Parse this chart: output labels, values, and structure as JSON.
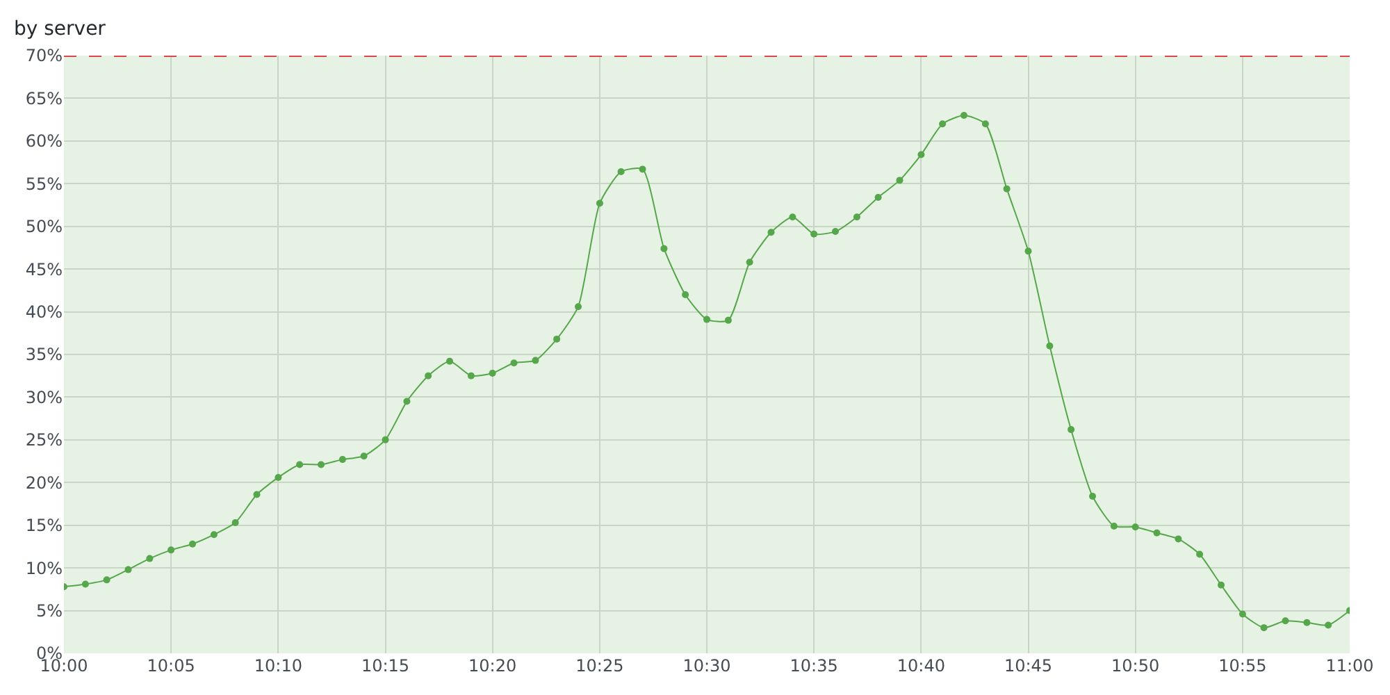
{
  "chart_data": {
    "type": "line",
    "title": "by server",
    "x": [
      10.0,
      10.0167,
      10.0333,
      10.05,
      10.0667,
      10.0833,
      10.1,
      10.1167,
      10.1333,
      10.15,
      10.1667,
      10.1833,
      10.2,
      10.2167,
      10.2333,
      10.25,
      10.2667,
      10.2833,
      10.3,
      10.3167,
      10.3333,
      10.35,
      10.3667,
      10.3833,
      10.4,
      10.4167,
      10.4333,
      10.45,
      10.4667,
      10.4833,
      10.5,
      10.5167,
      10.5333,
      10.55,
      10.5667,
      10.5833,
      10.6,
      10.6167,
      10.6333,
      10.65,
      10.6667,
      10.6833,
      10.7,
      10.7167,
      10.7333,
      10.75,
      10.7667,
      10.7833,
      10.8,
      10.8167,
      10.8333,
      10.85,
      10.8667,
      10.8833,
      10.9,
      10.9167,
      10.9333,
      10.95,
      10.9667,
      10.9833,
      11.0
    ],
    "series": [
      {
        "color": "#56a64b",
        "values": [
          7.8,
          8.1,
          8.6,
          9.8,
          11.1,
          12.1,
          12.8,
          13.9,
          15.3,
          18.6,
          20.6,
          22.1,
          22.1,
          22.7,
          23.1,
          25.0,
          29.5,
          32.5,
          34.2,
          32.5,
          32.8,
          34.0,
          34.3,
          36.8,
          40.6,
          52.7,
          56.4,
          56.7,
          47.4,
          42.0,
          39.1,
          39.0,
          45.8,
          49.3,
          51.1,
          49.1,
          49.4,
          51.1,
          53.4,
          55.4,
          58.4,
          62.0,
          63.0,
          62.0,
          54.4,
          47.1,
          36.0,
          26.2,
          18.4,
          14.9,
          14.8,
          14.1,
          13.4,
          11.6,
          8.0,
          4.6,
          3.0,
          3.8,
          3.6,
          3.3,
          5.0
        ]
      }
    ],
    "xlim": [
      10.0,
      11.0
    ],
    "xticks": [
      {
        "value": 10.0,
        "label": "10:00"
      },
      {
        "value": 10.0833,
        "label": "10:05"
      },
      {
        "value": 10.1667,
        "label": "10:10"
      },
      {
        "value": 10.25,
        "label": "10:15"
      },
      {
        "value": 10.3333,
        "label": "10:20"
      },
      {
        "value": 10.4167,
        "label": "10:25"
      },
      {
        "value": 10.5,
        "label": "10:30"
      },
      {
        "value": 10.5833,
        "label": "10:35"
      },
      {
        "value": 10.6667,
        "label": "10:40"
      },
      {
        "value": 10.75,
        "label": "10:45"
      },
      {
        "value": 10.8333,
        "label": "10:50"
      },
      {
        "value": 10.9167,
        "label": "10:55"
      },
      {
        "value": 11.0,
        "label": "11:00"
      }
    ],
    "ylim": [
      0,
      70
    ],
    "yticks": [
      {
        "value": 0,
        "label": "0%"
      },
      {
        "value": 5,
        "label": "5%"
      },
      {
        "value": 10,
        "label": "10%"
      },
      {
        "value": 15,
        "label": "15%"
      },
      {
        "value": 20,
        "label": "20%"
      },
      {
        "value": 25,
        "label": "25%"
      },
      {
        "value": 30,
        "label": "30%"
      },
      {
        "value": 35,
        "label": "35%"
      },
      {
        "value": 40,
        "label": "40%"
      },
      {
        "value": 45,
        "label": "45%"
      },
      {
        "value": 50,
        "label": "50%"
      },
      {
        "value": 55,
        "label": "55%"
      },
      {
        "value": 60,
        "label": "60%"
      },
      {
        "value": 65,
        "label": "65%"
      },
      {
        "value": 70,
        "label": "70%"
      }
    ],
    "ref_lines": [
      {
        "axis": "y",
        "value": 70,
        "color": "#e0474b",
        "line_style": "dashed"
      }
    ],
    "bands": [
      {
        "axis": "y",
        "from": 0,
        "to": 70,
        "color": "#e6f2e3"
      }
    ],
    "grid": true,
    "marker": "circle",
    "line_style": "solid"
  }
}
